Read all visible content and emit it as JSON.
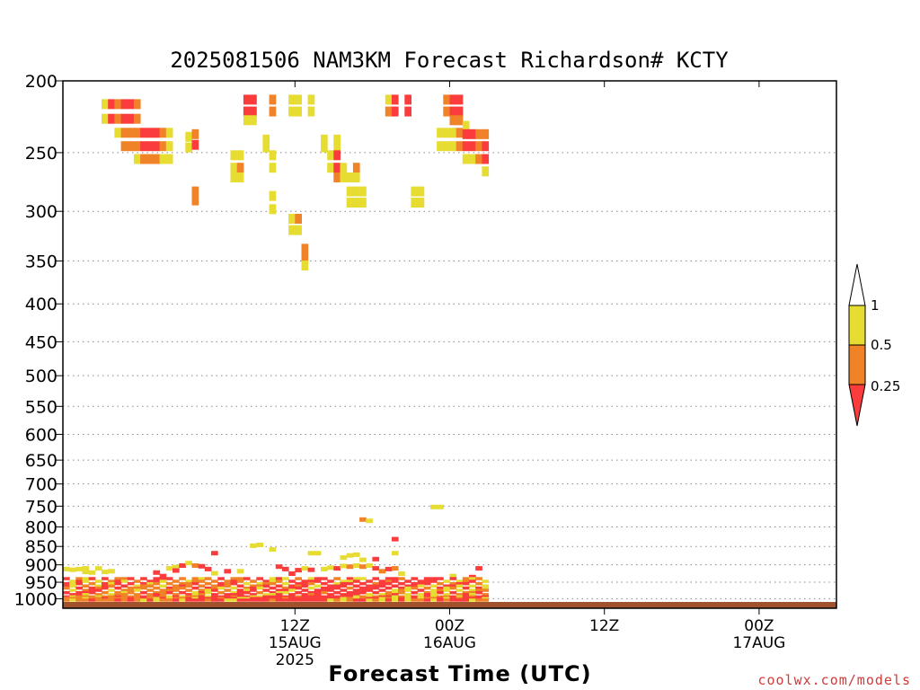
{
  "chart_data": {
    "type": "heatmap",
    "title": "2025081506 NAM3KM Forecast Richardson# KCTY",
    "xlabel": "Forecast Time (UTC)",
    "ylabel": "",
    "y_scale": "log-pressure",
    "y_unit": "hPa",
    "ylim": [
      1030,
      200
    ],
    "yticks": [
      200,
      250,
      300,
      350,
      400,
      450,
      500,
      550,
      600,
      650,
      700,
      750,
      800,
      850,
      900,
      950,
      1000
    ],
    "xlim": [
      -6,
      54
    ],
    "x_unit": "hours after 2025-08-15 00Z",
    "xticks": [
      {
        "x": 12,
        "label": "12Z",
        "label2": "15AUG",
        "label3": "2025"
      },
      {
        "x": 24,
        "label": "00Z",
        "label2": "16AUG",
        "label3": ""
      },
      {
        "x": 36,
        "label": "12Z",
        "label2": "",
        "label3": ""
      },
      {
        "x": 48,
        "label": "00Z",
        "label2": "17AUG",
        "label3": ""
      },
      {
        "x": 60,
        "label": "12Z",
        "label2": "",
        "label3": ""
      }
    ],
    "grid": "dotted horizontal",
    "ground_fill": {
      "from": 1010,
      "to": 1030,
      "color": "#a0522d"
    },
    "colorbar": {
      "labels": [
        "1",
        "0.5",
        "0.25"
      ],
      "colors": {
        "white": "#ffffff",
        "yellow": "#e6dc32",
        "orange": "#f08228",
        "red": "#fa3c3c"
      }
    },
    "cells": [
      [
        6,
        215,
        "y"
      ],
      [
        6,
        225,
        "y"
      ],
      [
        7,
        215,
        "r"
      ],
      [
        7,
        225,
        "r"
      ],
      [
        8,
        215,
        "o"
      ],
      [
        8,
        225,
        "o"
      ],
      [
        8,
        235,
        "y"
      ],
      [
        9,
        215,
        "r"
      ],
      [
        9,
        225,
        "r"
      ],
      [
        9,
        235,
        "o"
      ],
      [
        9,
        245,
        "o"
      ],
      [
        10,
        215,
        "r"
      ],
      [
        10,
        225,
        "r"
      ],
      [
        10,
        235,
        "o"
      ],
      [
        10,
        245,
        "o"
      ],
      [
        11,
        215,
        "o"
      ],
      [
        11,
        225,
        "o"
      ],
      [
        11,
        235,
        "o"
      ],
      [
        11,
        245,
        "o"
      ],
      [
        11,
        255,
        "y"
      ],
      [
        12,
        235,
        "r"
      ],
      [
        12,
        245,
        "r"
      ],
      [
        12,
        255,
        "o"
      ],
      [
        13,
        235,
        "r"
      ],
      [
        13,
        245,
        "r"
      ],
      [
        13,
        255,
        "o"
      ],
      [
        14,
        235,
        "r"
      ],
      [
        14,
        245,
        "r"
      ],
      [
        14,
        255,
        "o"
      ],
      [
        15,
        235,
        "o"
      ],
      [
        15,
        245,
        "o"
      ],
      [
        15,
        255,
        "y"
      ],
      [
        16,
        235,
        "y"
      ],
      [
        16,
        245,
        "y"
      ],
      [
        16,
        255,
        "y"
      ],
      [
        19,
        238,
        "y"
      ],
      [
        19,
        246,
        "y"
      ],
      [
        20,
        236,
        "o"
      ],
      [
        20,
        244,
        "r"
      ],
      [
        20,
        282,
        "o"
      ],
      [
        20,
        290,
        "o"
      ],
      [
        26,
        252,
        "y"
      ],
      [
        26,
        262,
        "y"
      ],
      [
        26,
        270,
        "y"
      ],
      [
        27,
        252,
        "y"
      ],
      [
        27,
        262,
        "o"
      ],
      [
        27,
        270,
        "y"
      ],
      [
        28,
        212,
        "r"
      ],
      [
        28,
        220,
        "r"
      ],
      [
        28,
        226,
        "y"
      ],
      [
        29,
        212,
        "r"
      ],
      [
        29,
        220,
        "r"
      ],
      [
        29,
        226,
        "y"
      ],
      [
        31,
        240,
        "y"
      ],
      [
        31,
        246,
        "y"
      ],
      [
        32,
        212,
        "o"
      ],
      [
        32,
        220,
        "o"
      ],
      [
        32,
        252,
        "y"
      ],
      [
        32,
        262,
        "y"
      ],
      [
        32,
        286,
        "y"
      ],
      [
        32,
        298,
        "y"
      ],
      [
        35,
        212,
        "y"
      ],
      [
        35,
        220,
        "y"
      ],
      [
        36,
        212,
        "y"
      ],
      [
        36,
        220,
        "y"
      ],
      [
        35,
        307,
        "y"
      ],
      [
        35,
        318,
        "y"
      ],
      [
        36,
        307,
        "o"
      ],
      [
        36,
        318,
        "y"
      ],
      [
        37,
        337,
        "o"
      ],
      [
        37,
        347,
        "o"
      ],
      [
        37,
        355,
        "y"
      ],
      [
        38,
        212,
        "y"
      ],
      [
        38,
        220,
        "y"
      ],
      [
        40,
        240,
        "y"
      ],
      [
        40,
        246,
        "y"
      ],
      [
        41,
        252,
        "y"
      ],
      [
        41,
        262,
        "y"
      ],
      [
        42,
        240,
        "y"
      ],
      [
        42,
        246,
        "y"
      ],
      [
        42,
        252,
        "r"
      ],
      [
        42,
        262,
        "r"
      ],
      [
        42,
        270,
        "o"
      ],
      [
        43,
        262,
        "y"
      ],
      [
        43,
        270,
        "y"
      ],
      [
        44,
        270,
        "y"
      ],
      [
        44,
        282,
        "y"
      ],
      [
        44,
        292,
        "y"
      ],
      [
        45,
        262,
        "o"
      ],
      [
        45,
        270,
        "y"
      ],
      [
        45,
        282,
        "y"
      ],
      [
        45,
        292,
        "y"
      ],
      [
        46,
        282,
        "y"
      ],
      [
        46,
        292,
        "y"
      ],
      [
        50,
        212,
        "y"
      ],
      [
        50,
        220,
        "o"
      ],
      [
        51,
        212,
        "r"
      ],
      [
        51,
        220,
        "r"
      ],
      [
        53,
        212,
        "r"
      ],
      [
        53,
        220,
        "r"
      ],
      [
        54,
        282,
        "y"
      ],
      [
        54,
        292,
        "y"
      ],
      [
        55,
        282,
        "y"
      ],
      [
        55,
        292,
        "y"
      ],
      [
        58,
        235,
        "y"
      ],
      [
        58,
        245,
        "y"
      ],
      [
        59,
        212,
        "o"
      ],
      [
        59,
        220,
        "o"
      ],
      [
        59,
        235,
        "y"
      ],
      [
        59,
        245,
        "y"
      ],
      [
        60,
        212,
        "r"
      ],
      [
        60,
        220,
        "r"
      ],
      [
        60,
        226,
        "o"
      ],
      [
        60,
        235,
        "y"
      ],
      [
        60,
        245,
        "y"
      ],
      [
        61,
        212,
        "r"
      ],
      [
        61,
        220,
        "r"
      ],
      [
        61,
        226,
        "o"
      ],
      [
        61,
        235,
        "o"
      ],
      [
        61,
        245,
        "o"
      ],
      [
        62,
        230,
        "y"
      ],
      [
        62,
        236,
        "r"
      ],
      [
        62,
        245,
        "r"
      ],
      [
        62,
        255,
        "y"
      ],
      [
        63,
        236,
        "r"
      ],
      [
        63,
        245,
        "r"
      ],
      [
        63,
        255,
        "y"
      ],
      [
        64,
        236,
        "o"
      ],
      [
        64,
        245,
        "o"
      ],
      [
        64,
        255,
        "o"
      ],
      [
        65,
        236,
        "o"
      ],
      [
        65,
        245,
        "r"
      ],
      [
        65,
        255,
        "r"
      ],
      [
        65,
        265,
        "y"
      ],
      [
        46,
        782,
        "o"
      ],
      [
        47,
        785,
        "y"
      ],
      [
        57,
        752,
        "y"
      ],
      [
        58,
        752,
        "y"
      ],
      [
        23,
        868,
        "r"
      ],
      [
        29,
        848,
        "y"
      ],
      [
        30,
        846,
        "y"
      ],
      [
        32,
        858,
        "y"
      ],
      [
        38,
        868,
        "y"
      ],
      [
        39,
        868,
        "y"
      ],
      [
        43,
        880,
        "y"
      ],
      [
        44,
        874,
        "y"
      ],
      [
        45,
        872,
        "y"
      ],
      [
        46,
        886,
        "y"
      ],
      [
        48,
        884,
        "r"
      ],
      [
        51,
        868,
        "y"
      ],
      [
        51,
        831,
        "r"
      ],
      [
        0,
        912,
        "y"
      ],
      [
        1,
        914,
        "y"
      ],
      [
        2,
        912,
        "y"
      ],
      [
        3,
        910,
        "y"
      ],
      [
        3,
        920,
        "y"
      ],
      [
        4,
        922,
        "y"
      ],
      [
        5,
        910,
        "y"
      ],
      [
        6,
        920,
        "y"
      ],
      [
        7,
        918,
        "y"
      ],
      [
        14,
        922,
        "r"
      ],
      [
        15,
        932,
        "r"
      ],
      [
        16,
        910,
        "y"
      ],
      [
        17,
        906,
        "y"
      ],
      [
        17,
        916,
        "r"
      ],
      [
        18,
        902,
        "r"
      ],
      [
        19,
        895,
        "y"
      ],
      [
        20,
        902,
        "o"
      ],
      [
        21,
        904,
        "r"
      ],
      [
        22,
        912,
        "r"
      ],
      [
        23,
        924,
        "y"
      ],
      [
        25,
        918,
        "r"
      ],
      [
        27,
        918,
        "y"
      ],
      [
        33,
        905,
        "r"
      ],
      [
        34,
        912,
        "r"
      ],
      [
        35,
        925,
        "r"
      ],
      [
        36,
        915,
        "r"
      ],
      [
        37,
        910,
        "y"
      ],
      [
        38,
        914,
        "r"
      ],
      [
        40,
        912,
        "y"
      ],
      [
        41,
        908,
        "y"
      ],
      [
        42,
        910,
        "r"
      ],
      [
        43,
        903,
        "y"
      ],
      [
        44,
        905,
        "o"
      ],
      [
        45,
        902,
        "y"
      ],
      [
        46,
        905,
        "o"
      ],
      [
        47,
        902,
        "y"
      ],
      [
        48,
        910,
        "r"
      ],
      [
        49,
        918,
        "o"
      ],
      [
        50,
        912,
        "r"
      ],
      [
        51,
        910,
        "o"
      ],
      [
        52,
        925,
        "y"
      ],
      [
        60,
        932,
        "y"
      ],
      [
        63,
        935,
        "r"
      ],
      [
        64,
        910,
        "r"
      ]
    ],
    "band_rows": [
      [
        0,
        [
          [
            1,
            "r"
          ],
          [
            0,
            "o"
          ],
          [
            1,
            "y"
          ],
          [
            0,
            "r"
          ],
          [
            1,
            "r"
          ],
          [
            0,
            "o"
          ],
          [
            1,
            "r"
          ],
          [
            0,
            "y"
          ],
          [
            1,
            "o"
          ],
          [
            0,
            "r"
          ],
          [
            1,
            "r"
          ],
          [
            0,
            "y"
          ],
          [
            1,
            "r"
          ],
          [
            0,
            "r"
          ],
          [
            1,
            "o"
          ],
          [
            0,
            "y"
          ],
          [
            1,
            "r"
          ],
          [
            0,
            "r"
          ],
          [
            1,
            "r"
          ],
          [
            0,
            "o"
          ],
          [
            1,
            "r"
          ],
          [
            0,
            "y"
          ],
          [
            1,
            "o"
          ],
          [
            0,
            "r"
          ],
          [
            1,
            "r"
          ],
          [
            0,
            "o"
          ],
          [
            1,
            "y"
          ],
          [
            0,
            "r"
          ],
          [
            1,
            "r"
          ],
          [
            0,
            "o"
          ],
          [
            1,
            "o"
          ],
          [
            0,
            "y"
          ],
          [
            1,
            "r"
          ],
          [
            0,
            "r"
          ],
          [
            1,
            "o"
          ],
          [
            0,
            "y"
          ],
          [
            1,
            "r"
          ],
          [
            0,
            "r"
          ],
          [
            1,
            "o"
          ],
          [
            0,
            "r"
          ],
          [
            1,
            "y"
          ],
          [
            0,
            "r"
          ],
          [
            1,
            "r"
          ],
          [
            0,
            "o"
          ],
          [
            1,
            "r"
          ],
          [
            0,
            "y"
          ],
          [
            1,
            "r"
          ],
          [
            0,
            "o"
          ],
          [
            1,
            "r"
          ],
          [
            0,
            "y"
          ],
          [
            1,
            "o"
          ],
          [
            0,
            "y"
          ],
          [
            1,
            "o"
          ],
          [
            0,
            "y"
          ],
          [
            1,
            "o"
          ],
          [
            0,
            "r"
          ],
          [
            1,
            "o"
          ],
          [
            0,
            "o"
          ],
          [
            1,
            "y"
          ],
          [
            0,
            "r"
          ],
          [
            1,
            "o"
          ],
          [
            0,
            "r"
          ],
          [
            1,
            "r"
          ],
          [
            0,
            "o"
          ],
          [
            1,
            "r"
          ],
          [
            0,
            "r"
          ]
        ]
      ]
    ]
  },
  "credit": "coolwx.com/models"
}
